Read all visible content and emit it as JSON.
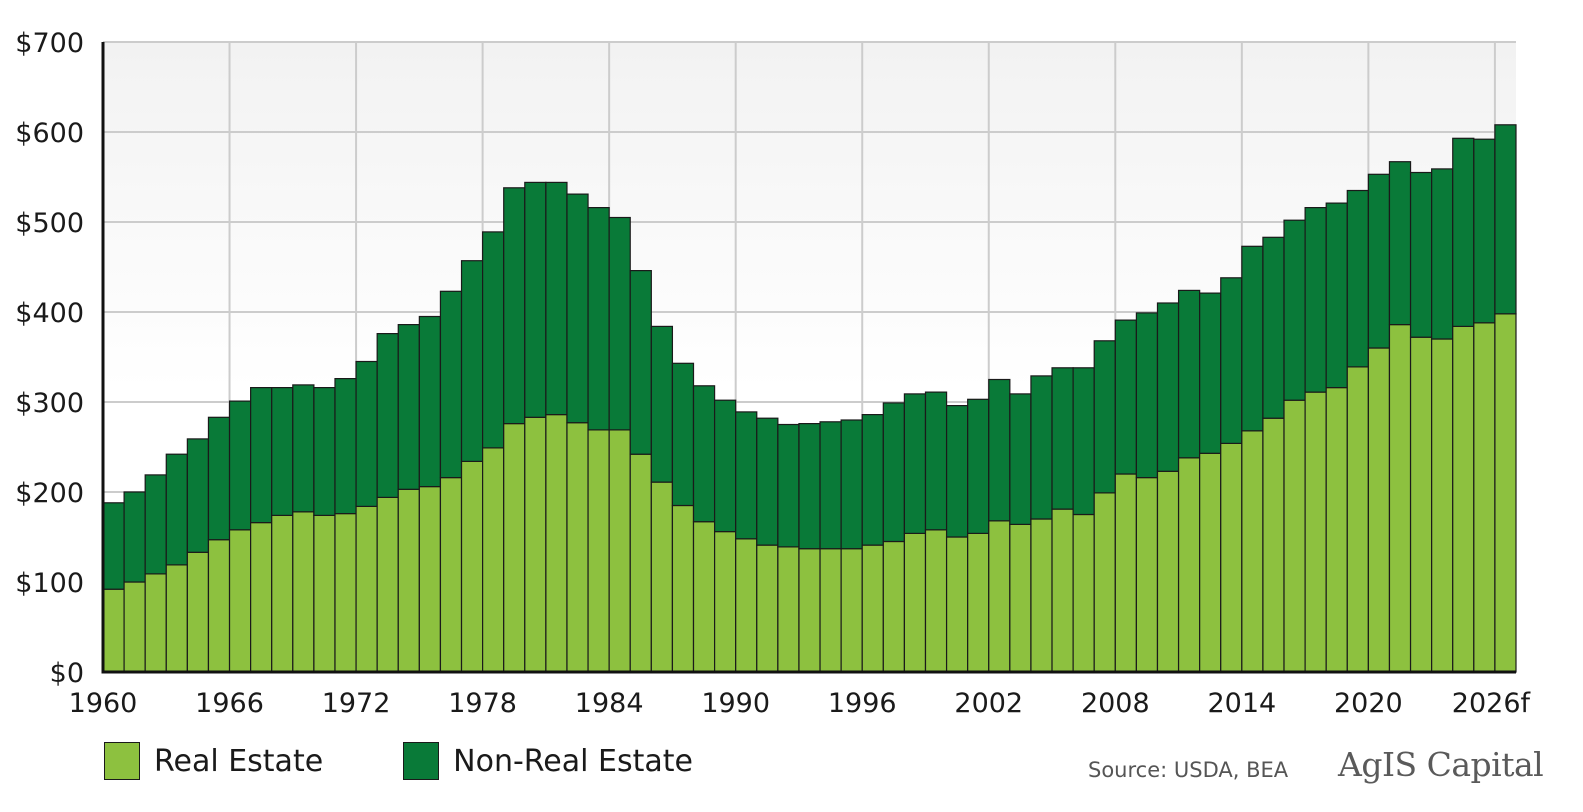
{
  "chart_data": {
    "type": "bar",
    "stacked": true,
    "title": "",
    "xlabel": "",
    "ylabel": "",
    "ylim": [
      0,
      700
    ],
    "y_ticks": [
      "$0",
      "$100",
      "$200",
      "$300",
      "$400",
      "$500",
      "$600",
      "$700"
    ],
    "y_tick_values": [
      0,
      100,
      200,
      300,
      400,
      500,
      600,
      700
    ],
    "x_tick_labels": [
      "1960",
      "1966",
      "1972",
      "1978",
      "1984",
      "1990",
      "1996",
      "2002",
      "2008",
      "2014",
      "2020",
      "2026f"
    ],
    "grid": true,
    "legend_position": "bottom-left",
    "categories": [
      "1960",
      "1961",
      "1962",
      "1963",
      "1964",
      "1965",
      "1966",
      "1967",
      "1968",
      "1969",
      "1970",
      "1971",
      "1972",
      "1973",
      "1974",
      "1975",
      "1976",
      "1977",
      "1978",
      "1979",
      "1980",
      "1981",
      "1982",
      "1983",
      "1984",
      "1985",
      "1986",
      "1987",
      "1988",
      "1989",
      "1990",
      "1991",
      "1992",
      "1993",
      "1994",
      "1995",
      "1996",
      "1997",
      "1998",
      "1999",
      "2000",
      "2001",
      "2002",
      "2003",
      "2004",
      "2005",
      "2006",
      "2007",
      "2008",
      "2009",
      "2010",
      "2011",
      "2012",
      "2013",
      "2014",
      "2015",
      "2016",
      "2017",
      "2018",
      "2019",
      "2020",
      "2021",
      "2022",
      "2023",
      "2024",
      "2025",
      "2026f"
    ],
    "series": [
      {
        "name": "Real Estate",
        "color": "#8dc13f",
        "values": [
          92,
          100,
          109,
          119,
          133,
          147,
          158,
          166,
          174,
          178,
          174,
          176,
          184,
          194,
          203,
          206,
          216,
          234,
          249,
          276,
          283,
          286,
          277,
          269,
          269,
          242,
          211,
          185,
          167,
          156,
          148,
          141,
          139,
          137,
          137,
          137,
          141,
          145,
          154,
          158,
          150,
          154,
          168,
          164,
          170,
          181,
          175,
          199,
          220,
          216,
          223,
          238,
          243,
          254,
          268,
          282,
          302,
          311,
          316,
          339,
          360,
          386,
          372,
          370,
          384,
          388,
          398
        ]
      },
      {
        "name": "Non-Real Estate",
        "color": "#097a38",
        "values": [
          96,
          100,
          110,
          123,
          126,
          136,
          143,
          150,
          142,
          141,
          142,
          150,
          161,
          182,
          183,
          189,
          207,
          223,
          240,
          262,
          261,
          258,
          254,
          247,
          236,
          204,
          173,
          158,
          151,
          146,
          141,
          141,
          136,
          139,
          141,
          143,
          145,
          154,
          155,
          153,
          146,
          149,
          157,
          145,
          159,
          157,
          163,
          169,
          171,
          183,
          187,
          186,
          178,
          184,
          205,
          201,
          200,
          205,
          205,
          196,
          193,
          181,
          183,
          189,
          209,
          204,
          210
        ]
      }
    ]
  },
  "legend": {
    "items": [
      {
        "label": "Real Estate",
        "color": "#8dc13f"
      },
      {
        "label": "Non-Real Estate",
        "color": "#097a38"
      }
    ]
  },
  "footer": {
    "source": "Source: USDA, BEA",
    "logo_text": "AgIS Capital"
  },
  "colors": {
    "grid": "#cccccc",
    "axis": "#111111",
    "bar_outline": "#1a1a1a"
  }
}
